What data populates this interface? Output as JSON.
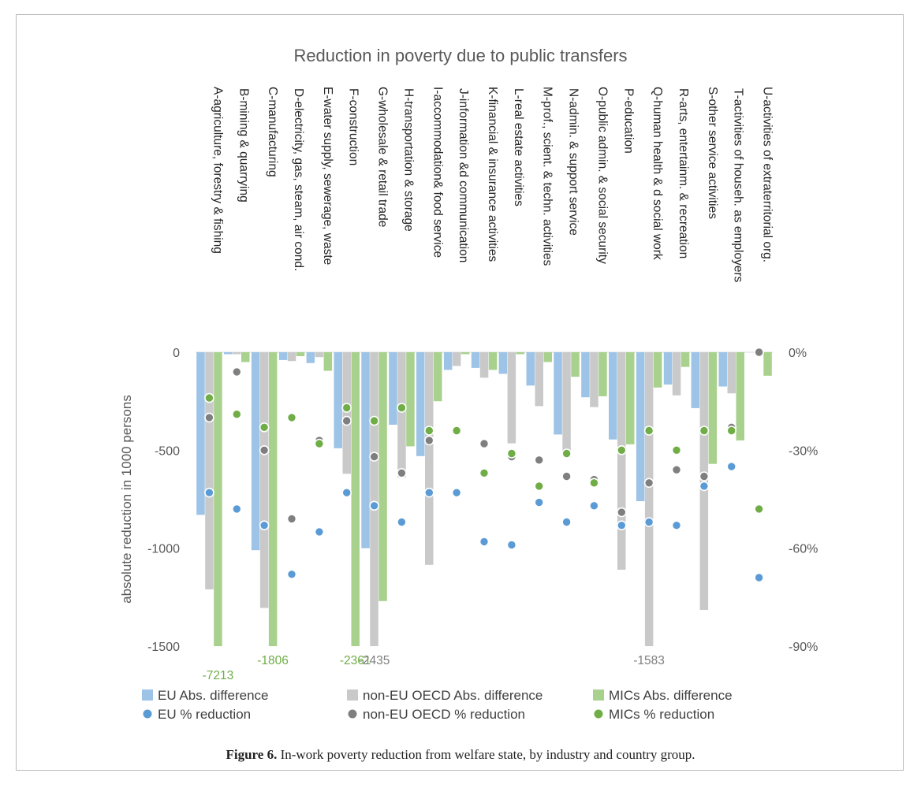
{
  "figure": {
    "caption_label": "Figure 6.",
    "caption_text": " In-work poverty reduction from welfare state, by industry and country group."
  },
  "chart_data": {
    "type": "bar",
    "title": "Reduction in poverty due to public transfers",
    "ylabel": "absolute reduction in 1000 persons",
    "y2label": "",
    "ylim": [
      -1500,
      0
    ],
    "y_ticks": [
      "0",
      "-500",
      "-1000",
      "-1500"
    ],
    "y2lim": [
      -0.9,
      0
    ],
    "y2_ticks": [
      "0%",
      "-30%",
      "-60%",
      "-90%"
    ],
    "categories": [
      "A-agriculture, forestry & fishing",
      "B-mining & quarrying",
      "C-manufacturing",
      "D-electricity, gas, steam, air cond.",
      "E-water supply, sewerage, waste",
      "F-construction",
      "G-wholesale & retail trade",
      "H-transportation & storage",
      "I-accommodation& food service",
      "J-information &d communication",
      "K-financial & insurance activities",
      "L-real estate activities",
      "M-prof., scient. & techn. activities",
      "N-admin. & support service",
      "O-public admin. & social security",
      "P-education",
      "Q-human health & d social work",
      "R-arts, entertainm. & recreation",
      "S-other service activities",
      "T-activities of househ. as employers",
      "U-activities of extraterritorial org."
    ],
    "bar_series": [
      {
        "name": "EU Abs. difference",
        "color": "#9dc3e6",
        "values": [
          -830,
          -10,
          -1010,
          -40,
          -55,
          -490,
          -1000,
          -370,
          -530,
          -90,
          -80,
          -110,
          -170,
          -420,
          -230,
          -445,
          -760,
          -165,
          -285,
          -175,
          0
        ]
      },
      {
        "name": "non-EU OECD Abs. difference",
        "color": "#c9c9c9",
        "values": [
          -1210,
          -10,
          -1305,
          -45,
          -25,
          -620,
          -2435,
          -640,
          -1085,
          -70,
          -130,
          -465,
          -275,
          -530,
          -280,
          -1110,
          -1583,
          -220,
          -1315,
          -210,
          0
        ]
      },
      {
        "name": "MICs Abs. difference",
        "color": "#a9d18e",
        "values": [
          -7213,
          -50,
          -1806,
          -20,
          -95,
          -2361,
          -1270,
          -480,
          -250,
          -10,
          -90,
          -10,
          -50,
          -125,
          -225,
          -470,
          -180,
          -75,
          -570,
          -450,
          -120
        ]
      }
    ],
    "point_series": [
      {
        "name": "EU % reduction",
        "color": "#5b9bd5",
        "values": [
          -0.43,
          -0.48,
          -0.53,
          -0.68,
          -0.55,
          -0.43,
          -0.47,
          -0.52,
          -0.43,
          -0.43,
          -0.58,
          -0.59,
          -0.46,
          -0.52,
          -0.47,
          -0.53,
          -0.52,
          -0.53,
          -0.41,
          -0.35,
          -0.69
        ]
      },
      {
        "name": "non-EU OECD % reduction",
        "color": "#7f7f7f",
        "values": [
          -0.2,
          -0.06,
          -0.3,
          -0.51,
          -0.27,
          -0.21,
          -0.32,
          -0.37,
          -0.27,
          -0.24,
          -0.28,
          -0.32,
          -0.33,
          -0.38,
          -0.39,
          -0.49,
          -0.4,
          -0.36,
          -0.38,
          -0.23,
          0
        ]
      },
      {
        "name": "MICs % reduction",
        "color": "#70ad47",
        "values": [
          -0.14,
          -0.19,
          -0.23,
          -0.2,
          -0.28,
          -0.17,
          -0.21,
          -0.17,
          -0.24,
          -0.24,
          -0.37,
          -0.31,
          -0.41,
          -0.31,
          -0.4,
          -0.3,
          -0.24,
          -0.3,
          -0.24,
          -0.24,
          -0.48
        ]
      }
    ],
    "clipped_labels": [
      {
        "series": 2,
        "category": 0,
        "text": "-7213"
      },
      {
        "series": 2,
        "category": 2,
        "text": "-1806"
      },
      {
        "series": 2,
        "category": 5,
        "text": "-2361"
      },
      {
        "series": 1,
        "category": 6,
        "text": "-2435"
      },
      {
        "series": 1,
        "category": 16,
        "text": "-1583"
      }
    ],
    "legend": [
      {
        "label": "EU Abs. difference",
        "kind": "bar",
        "color": "#9dc3e6"
      },
      {
        "label": "non-EU OECD Abs. difference",
        "kind": "bar",
        "color": "#c9c9c9"
      },
      {
        "label": "MICs Abs. difference",
        "kind": "bar",
        "color": "#a9d18e"
      },
      {
        "label": "EU % reduction",
        "kind": "dot",
        "color": "#5b9bd5"
      },
      {
        "label": "non-EU OECD % reduction",
        "kind": "dot",
        "color": "#7f7f7f"
      },
      {
        "label": "MICs % reduction",
        "kind": "dot",
        "color": "#70ad47"
      }
    ],
    "legend_position": "bottom",
    "grid": false
  }
}
